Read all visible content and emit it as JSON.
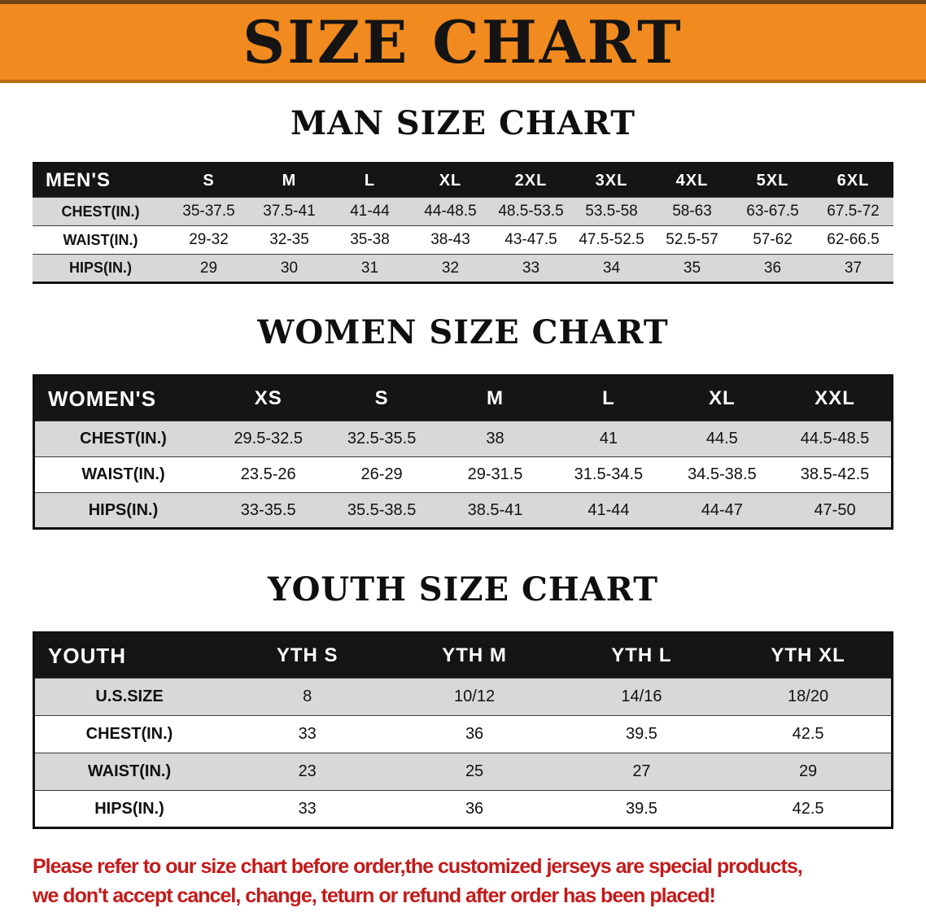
{
  "banner": {
    "title": "SIZE CHART",
    "bg_color": "#F18A1F",
    "text_color": "#141414"
  },
  "sections": [
    {
      "heading": "MAN SIZE CHART",
      "table": {
        "corner_label": "MEN'S",
        "columns": [
          "S",
          "M",
          "L",
          "XL",
          "2XL",
          "3XL",
          "4XL",
          "5XL",
          "6XL"
        ],
        "rows": [
          {
            "label": "CHEST(IN.)",
            "values": [
              "35-37.5",
              "37.5-41",
              "41-44",
              "44-48.5",
              "48.5-53.5",
              "53.5-58",
              "58-63",
              "63-67.5",
              "67.5-72"
            ]
          },
          {
            "label": "WAIST(IN.)",
            "values": [
              "29-32",
              "32-35",
              "35-38",
              "38-43",
              "43-47.5",
              "47.5-52.5",
              "52.5-57",
              "57-62",
              "62-66.5"
            ]
          },
          {
            "label": "HIPS(IN.)",
            "values": [
              "29",
              "30",
              "31",
              "32",
              "33",
              "34",
              "35",
              "36",
              "37"
            ]
          }
        ]
      }
    },
    {
      "heading": "WOMEN SIZE CHART",
      "table": {
        "corner_label": "WOMEN'S",
        "columns": [
          "XS",
          "S",
          "M",
          "L",
          "XL",
          "XXL"
        ],
        "rows": [
          {
            "label": "CHEST(IN.)",
            "values": [
              "29.5-32.5",
              "32.5-35.5",
              "38",
              "41",
              "44.5",
              "44.5-48.5"
            ]
          },
          {
            "label": "WAIST(IN.)",
            "values": [
              "23.5-26",
              "26-29",
              "29-31.5",
              "31.5-34.5",
              "34.5-38.5",
              "38.5-42.5"
            ]
          },
          {
            "label": "HIPS(IN.)",
            "values": [
              "33-35.5",
              "35.5-38.5",
              "38.5-41",
              "41-44",
              "44-47",
              "47-50"
            ]
          }
        ]
      }
    },
    {
      "heading": "YOUTH SIZE CHART",
      "table": {
        "corner_label": "YOUTH",
        "columns": [
          "YTH S",
          "YTH M",
          "YTH L",
          "YTH XL"
        ],
        "rows": [
          {
            "label": "U.S.SIZE",
            "values": [
              "8",
              "10/12",
              "14/16",
              "18/20"
            ]
          },
          {
            "label": "CHEST(IN.)",
            "values": [
              "33",
              "36",
              "39.5",
              "42.5"
            ]
          },
          {
            "label": "WAIST(IN.)",
            "values": [
              "23",
              "25",
              "27",
              "29"
            ]
          },
          {
            "label": "HIPS(IN.)",
            "values": [
              "33",
              "36",
              "39.5",
              "42.5"
            ]
          }
        ]
      }
    }
  ],
  "footer": {
    "text_color": "#C41A1A",
    "lines": [
      "Please refer to our size chart before order,the customized jerseys are special products,",
      "we don't accept cancel, change, teturn or refund after order has been placed!"
    ]
  }
}
